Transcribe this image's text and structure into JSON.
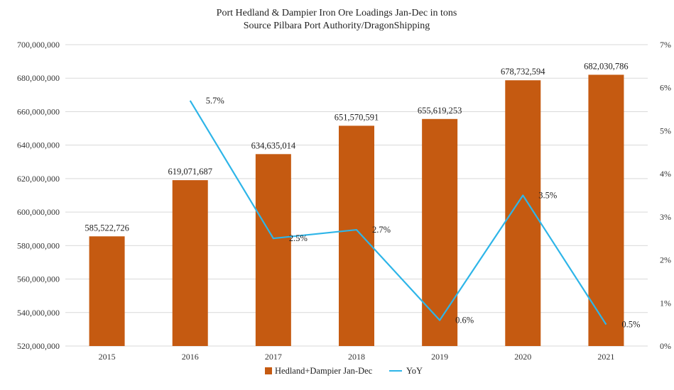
{
  "chart_data": {
    "type": "bar",
    "title": "Port Hedland & Dampier Iron Ore Loadings Jan-Dec in tons",
    "subtitle": "Source Pilbara Port Authority/DragonShipping",
    "categories": [
      "2015",
      "2016",
      "2017",
      "2018",
      "2019",
      "2020",
      "2021"
    ],
    "series": [
      {
        "name": "Hedland+Dampier Jan-Dec",
        "type": "bar",
        "axis": "left",
        "color": "#C55A11",
        "values": [
          585522726,
          619071687,
          634635014,
          651570591,
          655619253,
          678732594,
          682030786
        ],
        "labels": [
          "585,522,726",
          "619,071,687",
          "634,635,014",
          "651,570,591",
          "655,619,253",
          "678,732,594",
          "682,030,786"
        ]
      },
      {
        "name": "YoY",
        "type": "line",
        "axis": "right",
        "color": "#2EB5E8",
        "values": [
          null,
          5.7,
          2.5,
          2.7,
          0.6,
          3.5,
          0.5
        ],
        "labels": [
          "",
          "5.7%",
          "2.5%",
          "2.7%",
          "0.6%",
          "3.5%",
          "0.5%"
        ]
      }
    ],
    "y_left": {
      "min": 520000000,
      "max": 700000000,
      "ticks": [
        520000000,
        540000000,
        560000000,
        580000000,
        600000000,
        620000000,
        640000000,
        660000000,
        680000000,
        700000000
      ],
      "tick_labels": [
        "520,000,000",
        "540,000,000",
        "560,000,000",
        "580,000,000",
        "600,000,000",
        "620,000,000",
        "640,000,000",
        "660,000,000",
        "680,000,000",
        "700,000,000"
      ]
    },
    "y_right": {
      "min": 0,
      "max": 7,
      "ticks": [
        0,
        1,
        2,
        3,
        4,
        5,
        6,
        7
      ],
      "tick_labels": [
        "0%",
        "1%",
        "2%",
        "3%",
        "4%",
        "5%",
        "6%",
        "7%"
      ]
    },
    "grid": true,
    "legend_position": "bottom"
  }
}
